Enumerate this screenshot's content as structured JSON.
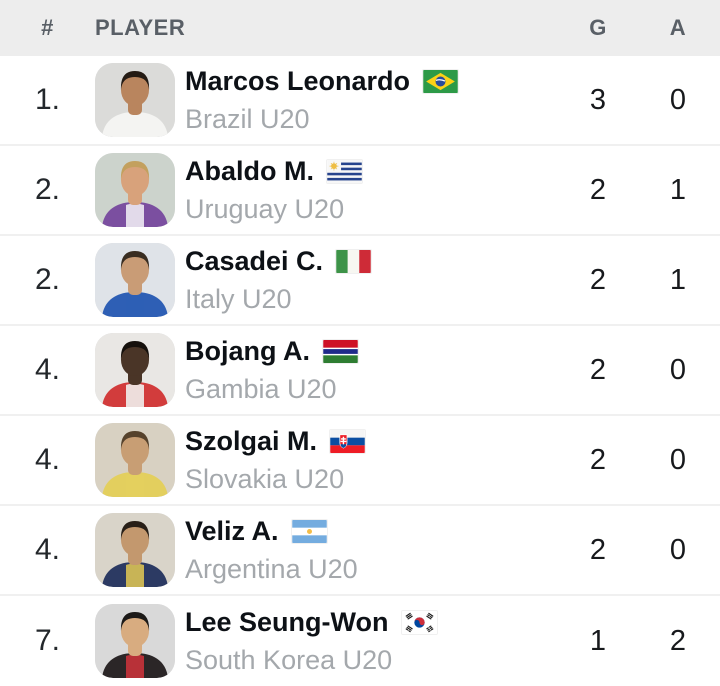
{
  "header": {
    "rank": "#",
    "player": "PLAYER",
    "goals": "G",
    "assists": "A"
  },
  "colors": {
    "header_bg": "#ededed",
    "header_text": "#595f66",
    "row_divider": "#f0f0f0",
    "name_text": "#0d1116",
    "team_text": "#a4a8ac",
    "stat_text": "#17191c"
  },
  "rows": [
    {
      "rank": "1.",
      "name": "Marcos Leonardo",
      "team": "Brazil U20",
      "flag": "brazil",
      "goals": "3",
      "assists": "0",
      "avatar": {
        "bg": "#dbdbd9",
        "skin": "#b9855e",
        "hair": "#241b14",
        "shirt": "#f4f4f2",
        "shirt2": "#f4f4f2"
      }
    },
    {
      "rank": "2.",
      "name": "Abaldo M.",
      "team": "Uruguay U20",
      "flag": "uruguay",
      "goals": "2",
      "assists": "1",
      "avatar": {
        "bg": "#ccd3cc",
        "skin": "#d8a27b",
        "hair": "#c3a05e",
        "shirt": "#7b4fa0",
        "shirt2": "#ede9f2"
      }
    },
    {
      "rank": "2.",
      "name": "Casadei C.",
      "team": "Italy U20",
      "flag": "italy",
      "goals": "2",
      "assists": "1",
      "avatar": {
        "bg": "#dfe3e8",
        "skin": "#c99c76",
        "hair": "#392d21",
        "shirt": "#2e5fb5",
        "shirt2": "#2e5fb5"
      }
    },
    {
      "rank": "4.",
      "name": "Bojang A.",
      "team": "Gambia U20",
      "flag": "gambia",
      "goals": "2",
      "assists": "0",
      "avatar": {
        "bg": "#e9e7e4",
        "skin": "#4a3527",
        "hair": "#15100c",
        "shirt": "#d23c3c",
        "shirt2": "#f0eeec"
      }
    },
    {
      "rank": "4.",
      "name": "Szolgai M.",
      "team": "Slovakia U20",
      "flag": "slovakia",
      "goals": "2",
      "assists": "0",
      "avatar": {
        "bg": "#d8d1c2",
        "skin": "#c89e74",
        "hair": "#56422c",
        "shirt": "#e3cf5e",
        "shirt2": "#e3cf5e"
      }
    },
    {
      "rank": "4.",
      "name": "Veliz A.",
      "team": "Argentina U20",
      "flag": "argentina",
      "goals": "2",
      "assists": "0",
      "avatar": {
        "bg": "#d9d4c9",
        "skin": "#c3986e",
        "hair": "#281f17",
        "shirt": "#2c3a63",
        "shirt2": "#d9c254"
      }
    },
    {
      "rank": "7.",
      "name": "Lee Seung-Won",
      "team": "South Korea U20",
      "flag": "south-korea",
      "goals": "1",
      "assists": "2",
      "avatar": {
        "bg": "#d9d9d9",
        "skin": "#d8ac80",
        "hair": "#1c1a18",
        "shirt": "#2b2627",
        "shirt2": "#c8333b"
      }
    }
  ]
}
